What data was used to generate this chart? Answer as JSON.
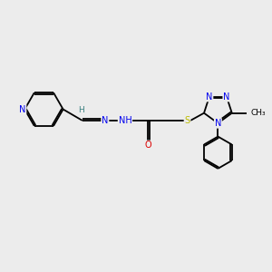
{
  "bg_color": "#ececec",
  "bond_color": "#000000",
  "bond_width": 1.3,
  "dbo": 0.055,
  "atom_colors": {
    "N": "#0000ee",
    "O": "#dd0000",
    "S": "#bbbb00",
    "C": "#000000",
    "H": "#3a8080"
  },
  "font_size": 7.0
}
